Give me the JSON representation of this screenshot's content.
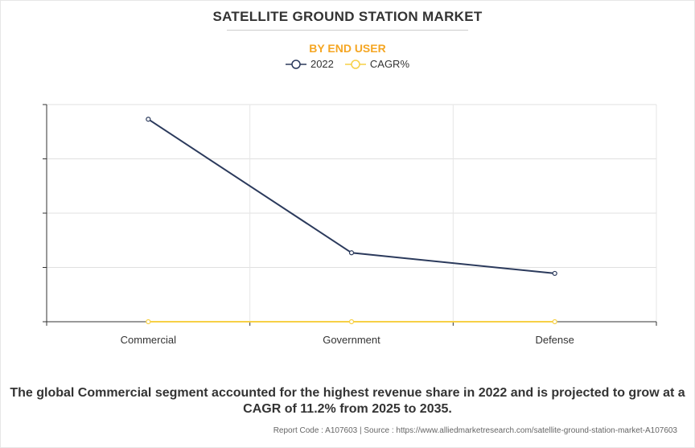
{
  "title": "SATELLITE GROUND STATION MARKET",
  "subtitle": "BY END USER",
  "caption": "The global Commercial segment accounted for the highest revenue share in 2022 and is projected to grow at a CAGR of 11.2% from 2025 to 2035.",
  "source": "Report Code : A107603  |  Source : https://www.alliedmarketresearch.com/satellite-ground-station-market-A107603",
  "chart_data": {
    "type": "line",
    "categories": [
      "Commercial",
      "Government",
      "Defense"
    ],
    "series": [
      {
        "name": "2022",
        "values": [
          3.73,
          1.27,
          0.89
        ],
        "color": "#2b3a5c"
      },
      {
        "name": "CAGR%",
        "values": [
          0,
          0,
          0
        ],
        "color": "#f7d046"
      }
    ],
    "ylim": [
      0,
      4
    ],
    "grid": true,
    "legend": "top-center",
    "y_tick_labels_shown": false
  }
}
